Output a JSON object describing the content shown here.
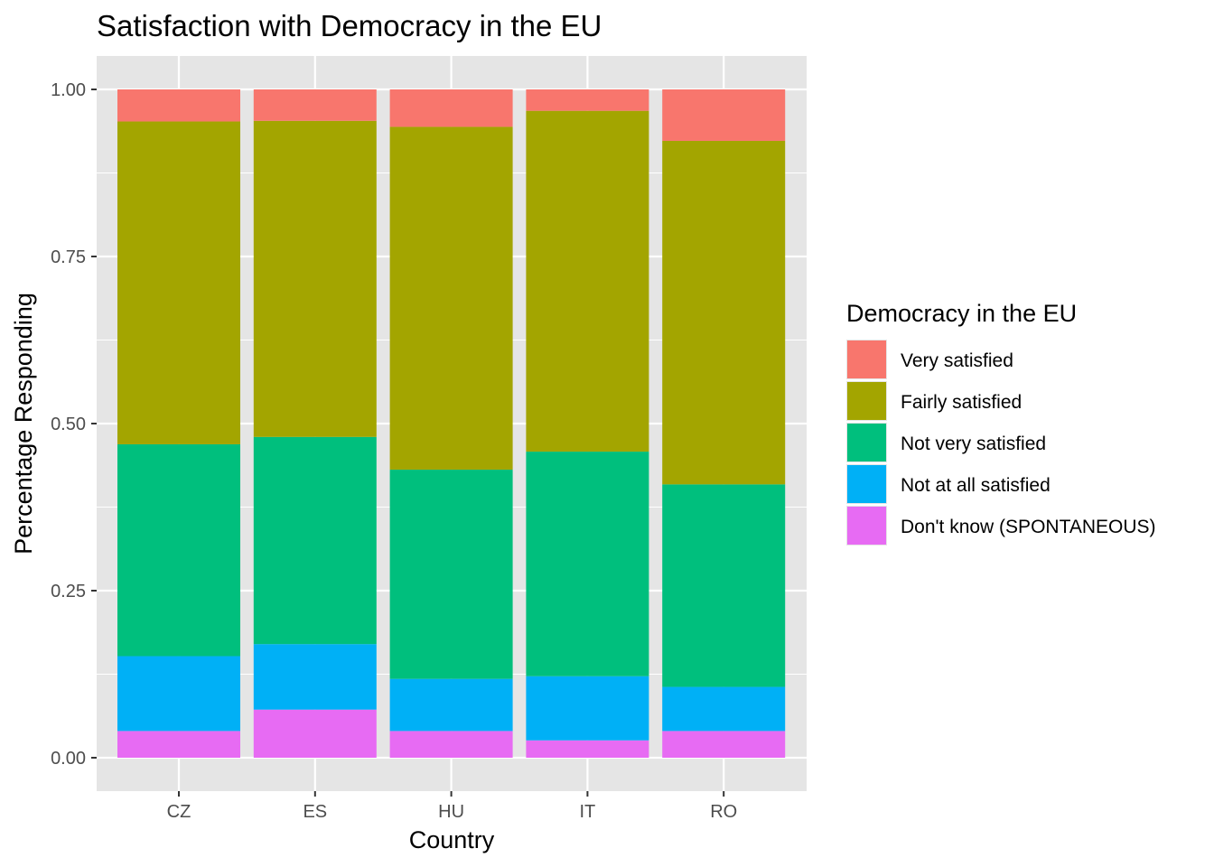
{
  "chart_data": {
    "type": "bar",
    "stacked": true,
    "title": "Satisfaction with Democracy in the EU",
    "xlabel": "Country",
    "ylabel": "Percentage Responding",
    "categories": [
      "CZ",
      "ES",
      "HU",
      "IT",
      "RO"
    ],
    "ylim": [
      0,
      1
    ],
    "yticks": [
      "0.00",
      "0.25",
      "0.50",
      "0.75",
      "1.00"
    ],
    "ytick_values": [
      0,
      0.25,
      0.5,
      0.75,
      1
    ],
    "grid": true,
    "legend": {
      "title": "Democracy in the EU",
      "position": "right"
    },
    "series": [
      {
        "name": "Don't know (SPONTANEOUS)",
        "color": "#E76BF3",
        "values": [
          0.04,
          0.072,
          0.04,
          0.026,
          0.04
        ]
      },
      {
        "name": "Not at all satisfied",
        "color": "#00B0F6",
        "values": [
          0.112,
          0.098,
          0.078,
          0.096,
          0.066
        ]
      },
      {
        "name": "Not very satisfied",
        "color": "#00BF7D",
        "values": [
          0.317,
          0.31,
          0.313,
          0.336,
          0.303
        ]
      },
      {
        "name": "Fairly satisfied",
        "color": "#A3A500",
        "values": [
          0.483,
          0.473,
          0.513,
          0.51,
          0.514
        ]
      },
      {
        "name": "Very satisfied",
        "color": "#F8766D",
        "values": [
          0.048,
          0.047,
          0.056,
          0.032,
          0.077
        ]
      }
    ],
    "legend_order": [
      "Very satisfied",
      "Fairly satisfied",
      "Not very satisfied",
      "Not at all satisfied",
      "Don't know (SPONTANEOUS)"
    ]
  },
  "colors": {
    "panel_background": "#E5E5E5",
    "grid": "#FFFFFF",
    "tick": "#333333"
  }
}
